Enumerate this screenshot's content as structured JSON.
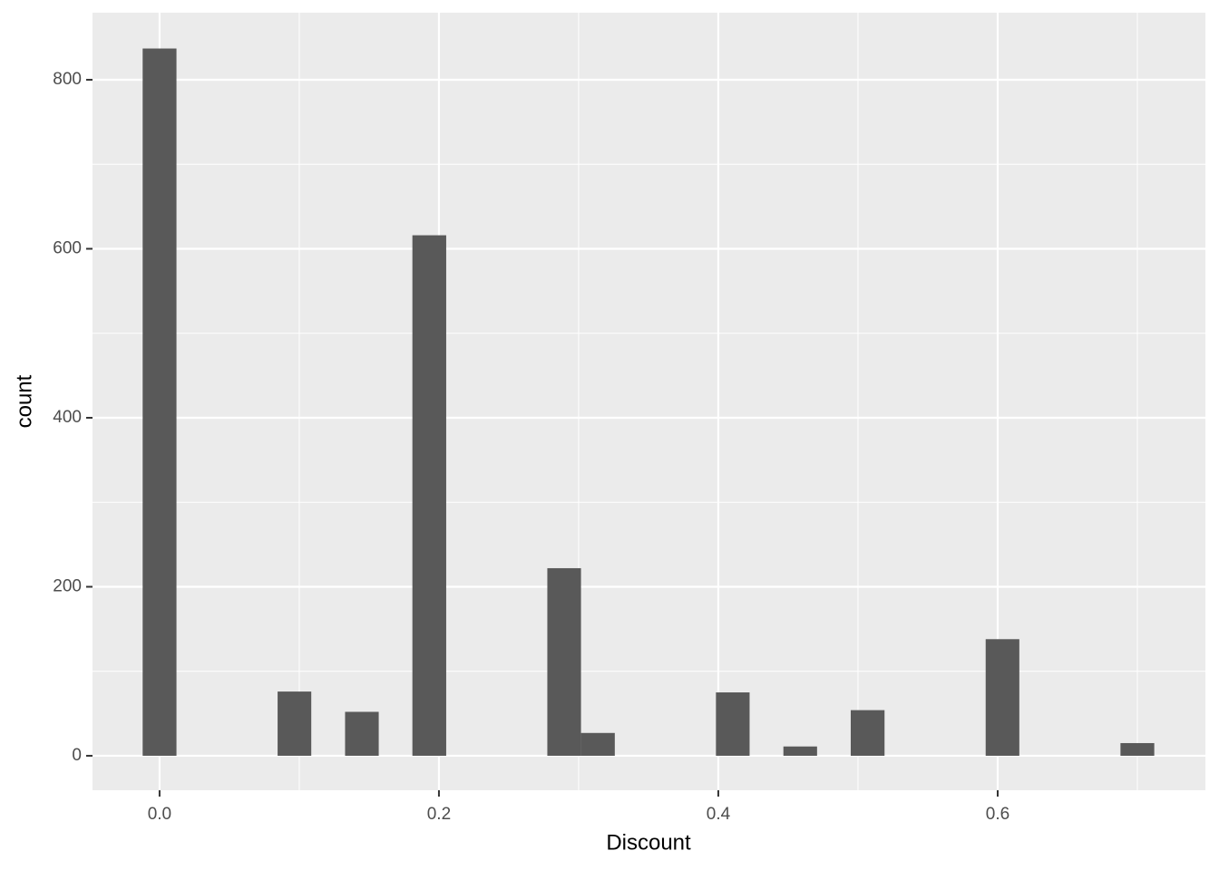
{
  "chart_data": {
    "type": "histogram",
    "x_label": "Discount",
    "y_label": "count",
    "bins": [
      -0.0121,
      0.0121,
      0.0362,
      0.0603,
      0.0845,
      0.1086,
      0.1328,
      0.1569,
      0.181,
      0.2052,
      0.2293,
      0.2534,
      0.2776,
      0.3017,
      0.3259,
      0.35,
      0.3741,
      0.3983,
      0.4224,
      0.4466,
      0.4707,
      0.4948,
      0.519,
      0.5431,
      0.5672,
      0.5914,
      0.6155,
      0.6397,
      0.6638,
      0.6879,
      0.7121
    ],
    "values": [
      837,
      0,
      0,
      0,
      76,
      0,
      52,
      0,
      616,
      0,
      0,
      0,
      222,
      27,
      0,
      0,
      0,
      75,
      0,
      11,
      0,
      54,
      0,
      0,
      0,
      138,
      0,
      0,
      0,
      15
    ],
    "color": "#595959",
    "xlim": [
      -0.048,
      0.7487
    ],
    "ylim": [
      -40.8,
      879.4
    ],
    "xticks": [
      {
        "value": 0,
        "label": "0.0"
      },
      0.2,
      0.4,
      0.6
    ],
    "yticks": [
      0,
      200,
      400,
      600,
      800
    ],
    "grid": true,
    "minor_grid": true
  }
}
